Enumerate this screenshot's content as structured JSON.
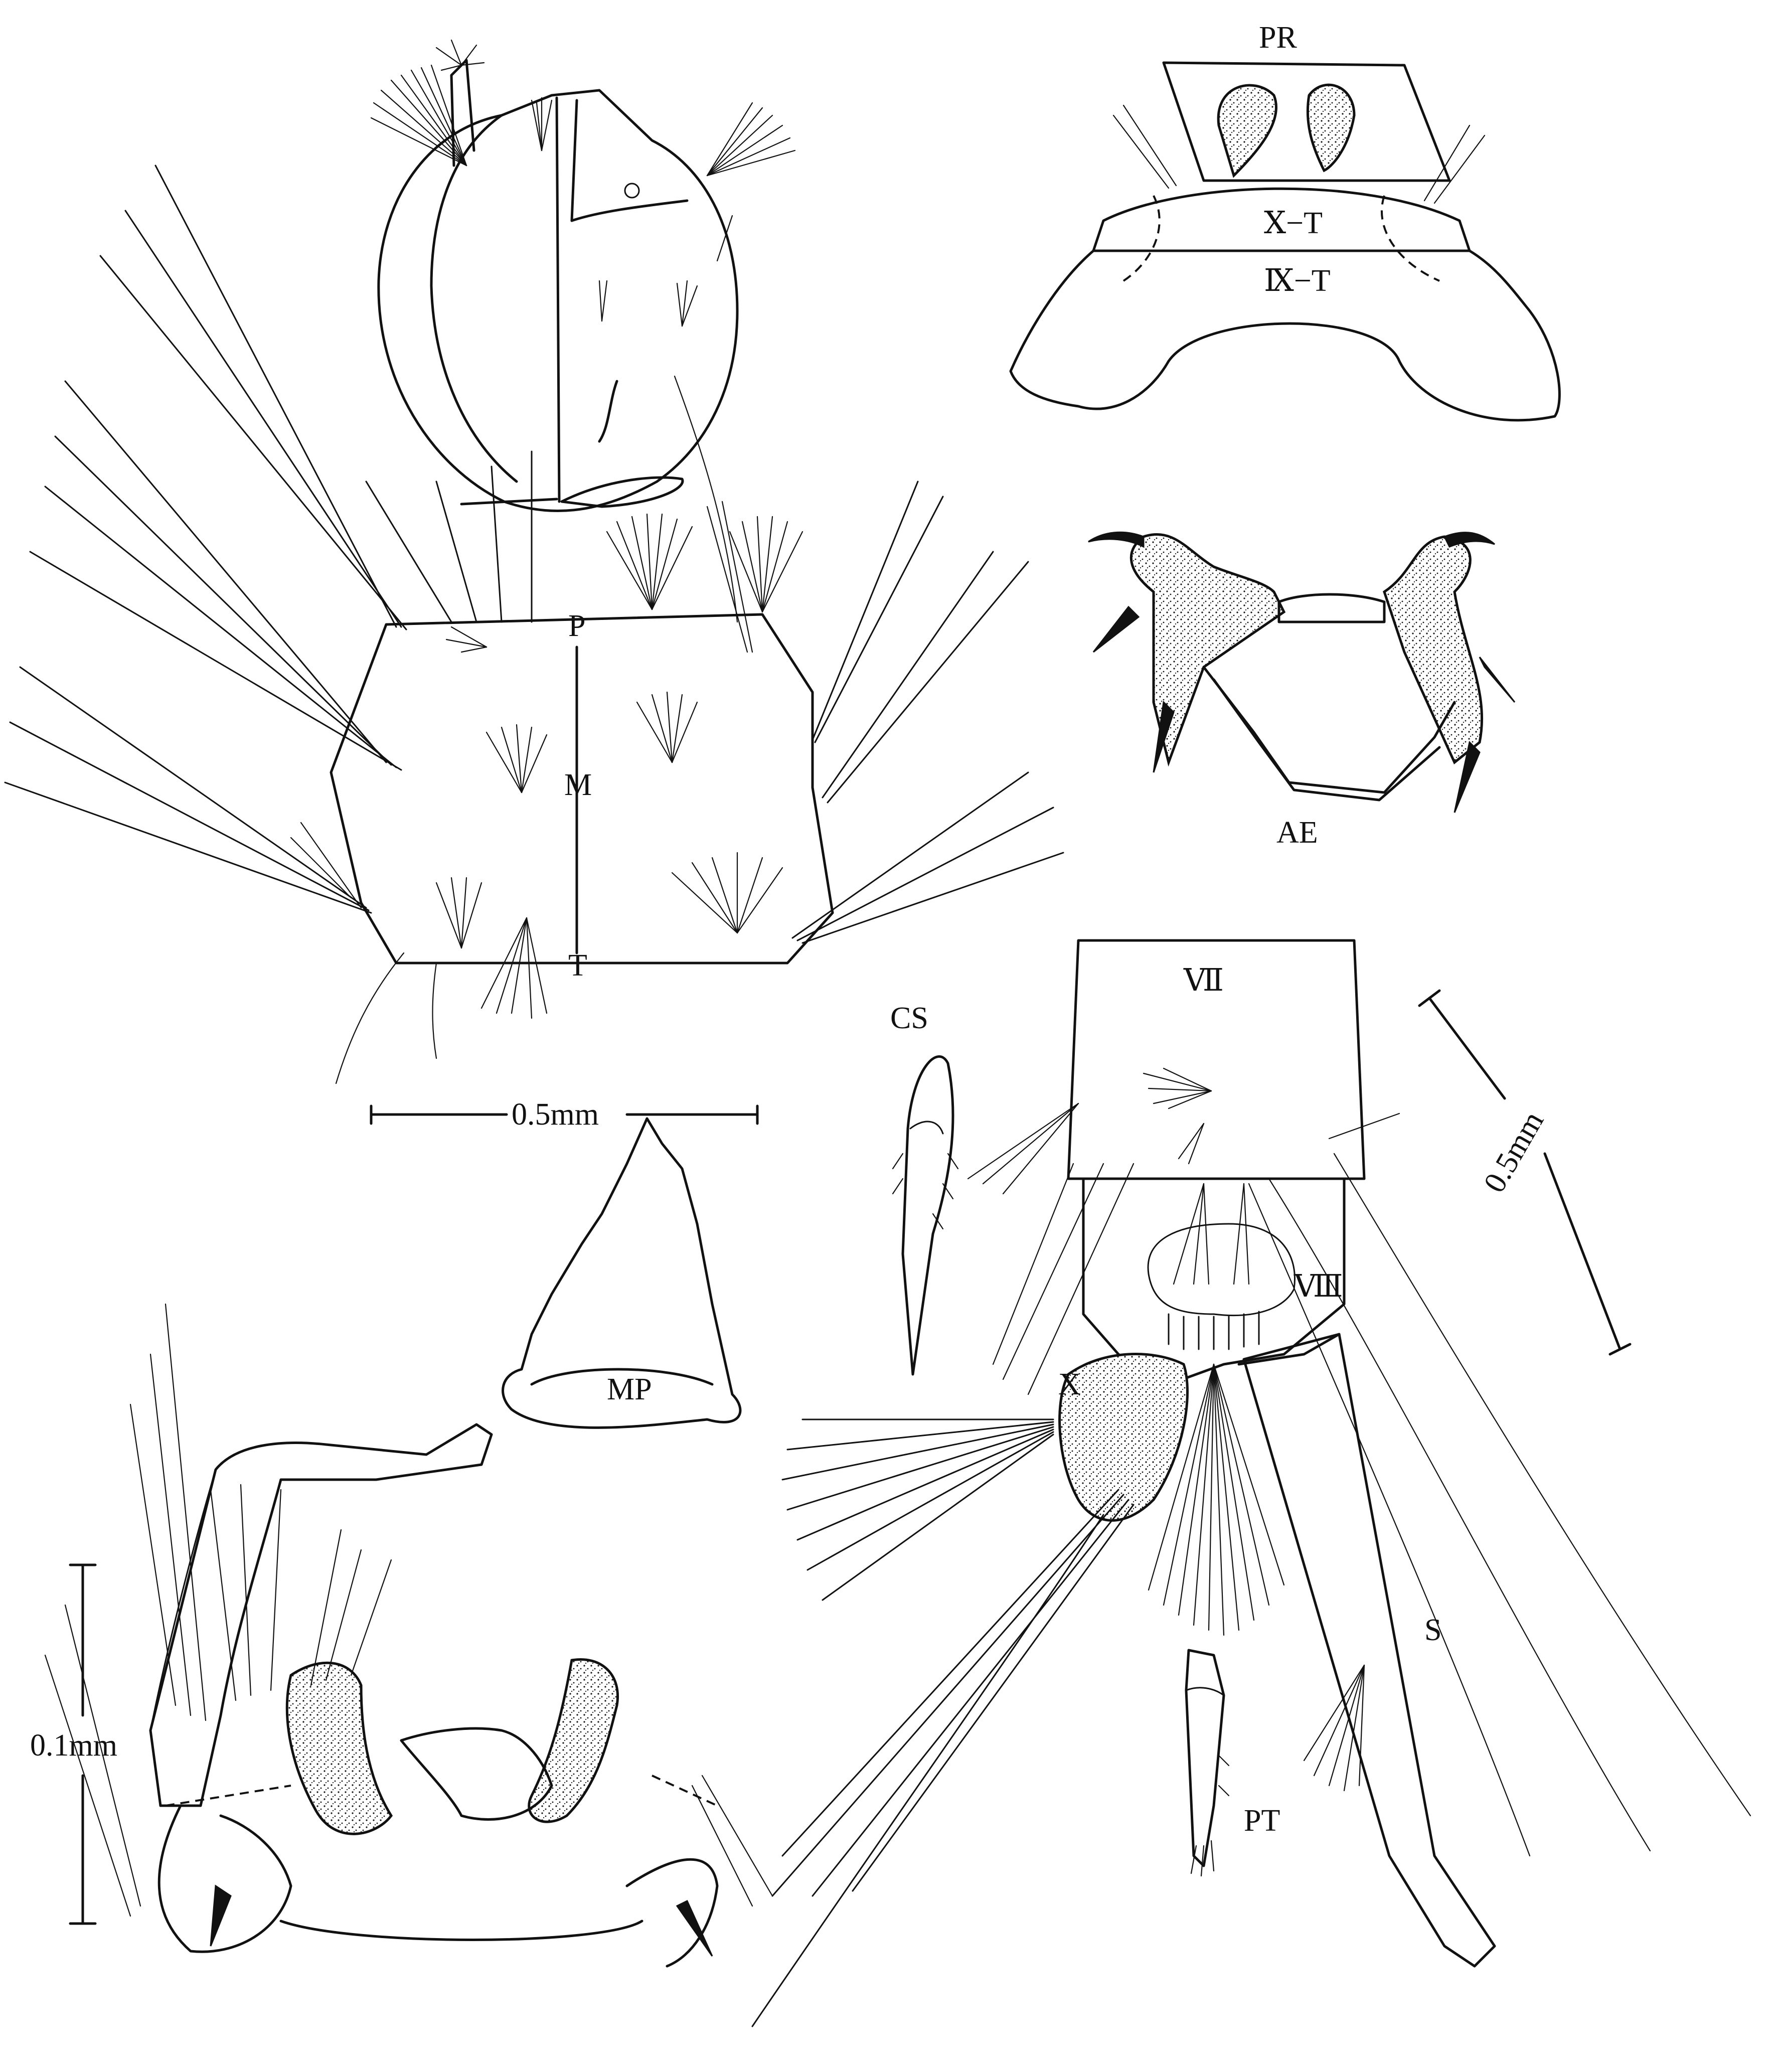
{
  "labels": {
    "P": "P",
    "M": "M",
    "T": "T",
    "PR": "PR",
    "X_T": "Ⅹ−T",
    "IX_T": "Ⅸ−T",
    "AE": "AE",
    "CS": "CS",
    "VII": "Ⅶ",
    "VIII": "Ⅷ",
    "X": "X",
    "S": "S",
    "MP": "MP",
    "PT": "PT"
  },
  "scales": {
    "thorax": "0.5mm",
    "abdomen": "0.5mm",
    "terminalia": "0.1mm"
  }
}
